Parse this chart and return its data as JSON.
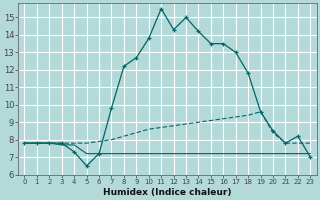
{
  "xlabel": "Humidex (Indice chaleur)",
  "ylabel": "",
  "bg_color": "#b3d9d9",
  "grid_color": "#ffffff",
  "line_color": "#006666",
  "xlim": [
    -0.5,
    23.5
  ],
  "ylim": [
    6,
    15.8
  ],
  "xtick_labels": [
    "0",
    "1",
    "2",
    "3",
    "4",
    "5",
    "6",
    "7",
    "8",
    "9",
    "10",
    "11",
    "12",
    "13",
    "14",
    "15",
    "16",
    "17",
    "18",
    "19",
    "20",
    "21",
    "22",
    "23"
  ],
  "ytick_labels": [
    "6",
    "7",
    "8",
    "9",
    "10",
    "11",
    "12",
    "13",
    "14",
    "15"
  ],
  "yticks": [
    6,
    7,
    8,
    9,
    10,
    11,
    12,
    13,
    14,
    15
  ],
  "curve1_x": [
    0,
    1,
    2,
    3,
    4,
    5,
    6,
    7,
    8,
    9,
    10,
    11,
    12,
    13,
    14,
    15,
    16,
    17,
    18,
    19,
    20,
    21,
    22,
    23
  ],
  "curve1_y": [
    7.8,
    7.8,
    7.8,
    7.8,
    7.3,
    6.5,
    7.2,
    9.8,
    12.2,
    12.7,
    13.8,
    15.5,
    14.3,
    15.0,
    14.2,
    13.5,
    13.5,
    13.0,
    11.8,
    9.6,
    8.5,
    7.8,
    8.2,
    7.0
  ],
  "curve2_x": [
    0,
    1,
    2,
    3,
    4,
    5,
    6,
    7,
    8,
    9,
    10,
    11,
    12,
    13,
    14,
    15,
    16,
    17,
    18,
    19,
    20,
    21,
    22,
    23
  ],
  "curve2_y": [
    7.8,
    7.8,
    7.8,
    7.8,
    7.8,
    7.8,
    7.9,
    8.0,
    8.2,
    8.4,
    8.6,
    8.7,
    8.8,
    8.9,
    9.0,
    9.1,
    9.2,
    9.3,
    9.4,
    9.6,
    8.4,
    7.8,
    7.8,
    7.8
  ],
  "curve3_x": [
    0,
    1,
    2,
    3,
    4,
    5,
    6,
    7,
    8,
    9,
    10,
    11,
    12,
    13,
    14,
    15,
    16,
    17,
    18,
    19,
    20,
    21,
    22,
    23
  ],
  "curve3_y": [
    7.8,
    7.8,
    7.8,
    7.7,
    7.7,
    7.2,
    7.2,
    7.2,
    7.2,
    7.2,
    7.2,
    7.2,
    7.2,
    7.2,
    7.2,
    7.2,
    7.2,
    7.2,
    7.2,
    7.2,
    7.2,
    7.2,
    7.2,
    7.2
  ]
}
